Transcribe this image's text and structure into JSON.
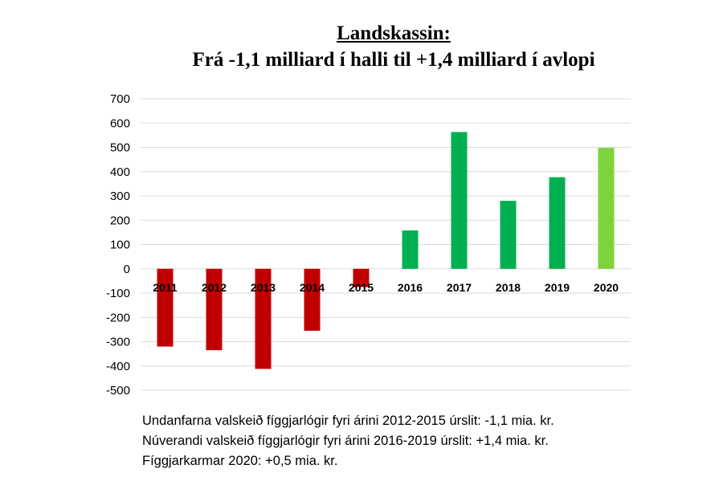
{
  "header": {
    "title": "Landskassin:",
    "subtitle": "Frá -1,1 milliard í halli til +1,4 milliard í avlopi"
  },
  "colors": {
    "deficit": "#c00000",
    "surplus": "#00b050",
    "budget": "#7ed33a",
    "gridline": "#d9d9d9",
    "axis_text": "#000000"
  },
  "chart_data": {
    "type": "bar",
    "title": "Landskassin:",
    "subtitle": "Frá -1,1 milliard í halli til +1,4 milliard í avlopi",
    "categories": [
      "2011",
      "2012",
      "2013",
      "2014",
      "2015",
      "2016",
      "2017",
      "2018",
      "2019",
      "2020"
    ],
    "values": [
      -320,
      -335,
      -412,
      -255,
      -75,
      158,
      563,
      280,
      377,
      498
    ],
    "bar_colors": [
      "deficit",
      "deficit",
      "deficit",
      "deficit",
      "deficit",
      "surplus",
      "surplus",
      "surplus",
      "surplus",
      "budget"
    ],
    "ylim": [
      -500,
      700
    ],
    "yticks": [
      700,
      600,
      500,
      400,
      300,
      200,
      100,
      0,
      -100,
      -200,
      -300,
      -400,
      -500
    ],
    "grid": true,
    "legend": "none",
    "xlabel": "",
    "ylabel": ""
  },
  "notes": [
    "Undanfarna valskeið fíggjarlógir fyri árini 2012-2015 úrslit: -1,1 mia. kr.",
    "Núverandi valskeið fíggjarlógir fyri árini 2016-2019 úrslit: +1,4 mia. kr.",
    "Fíggjarkarmar 2020: +0,5 mia. kr."
  ]
}
